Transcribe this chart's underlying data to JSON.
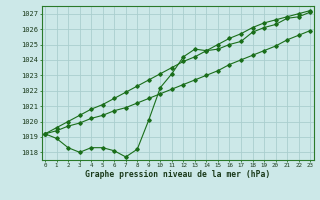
{
  "title": "Graphe pression niveau de la mer (hPa)",
  "bg_color": "#cce8e8",
  "grid_color": "#aacece",
  "line_color": "#1a6e1a",
  "ylim": [
    1017.5,
    1027.5
  ],
  "yticks": [
    1018,
    1019,
    1020,
    1021,
    1022,
    1023,
    1024,
    1025,
    1026,
    1027
  ],
  "x_labels": [
    "0",
    "1",
    "2",
    "3",
    "4",
    "5",
    "6",
    "7",
    "8",
    "9",
    "10",
    "11",
    "12",
    "13",
    "14",
    "15",
    "16",
    "17",
    "18",
    "19",
    "20",
    "21",
    "22",
    "23"
  ],
  "line1_y": [
    1019.2,
    1018.9,
    1018.3,
    1018.0,
    1018.3,
    1018.3,
    1018.1,
    1017.7,
    1018.2,
    1020.1,
    1022.2,
    1023.1,
    1024.2,
    1024.7,
    1024.6,
    1024.7,
    1025.0,
    1025.2,
    1025.8,
    1026.1,
    1026.3,
    1026.7,
    1026.8,
    1027.1
  ],
  "line2_y": [
    1019.2,
    1019.4,
    1019.7,
    1019.9,
    1020.2,
    1020.4,
    1020.7,
    1020.9,
    1021.2,
    1021.5,
    1021.8,
    1022.1,
    1022.4,
    1022.7,
    1023.0,
    1023.3,
    1023.7,
    1024.0,
    1024.3,
    1024.6,
    1024.9,
    1025.3,
    1025.6,
    1025.9
  ],
  "line3_y": [
    1019.2,
    1019.6,
    1020.0,
    1020.4,
    1020.8,
    1021.1,
    1021.5,
    1021.9,
    1022.3,
    1022.7,
    1023.1,
    1023.5,
    1023.9,
    1024.2,
    1024.6,
    1025.0,
    1025.4,
    1025.7,
    1026.1,
    1026.4,
    1026.6,
    1026.8,
    1027.0,
    1027.2
  ]
}
